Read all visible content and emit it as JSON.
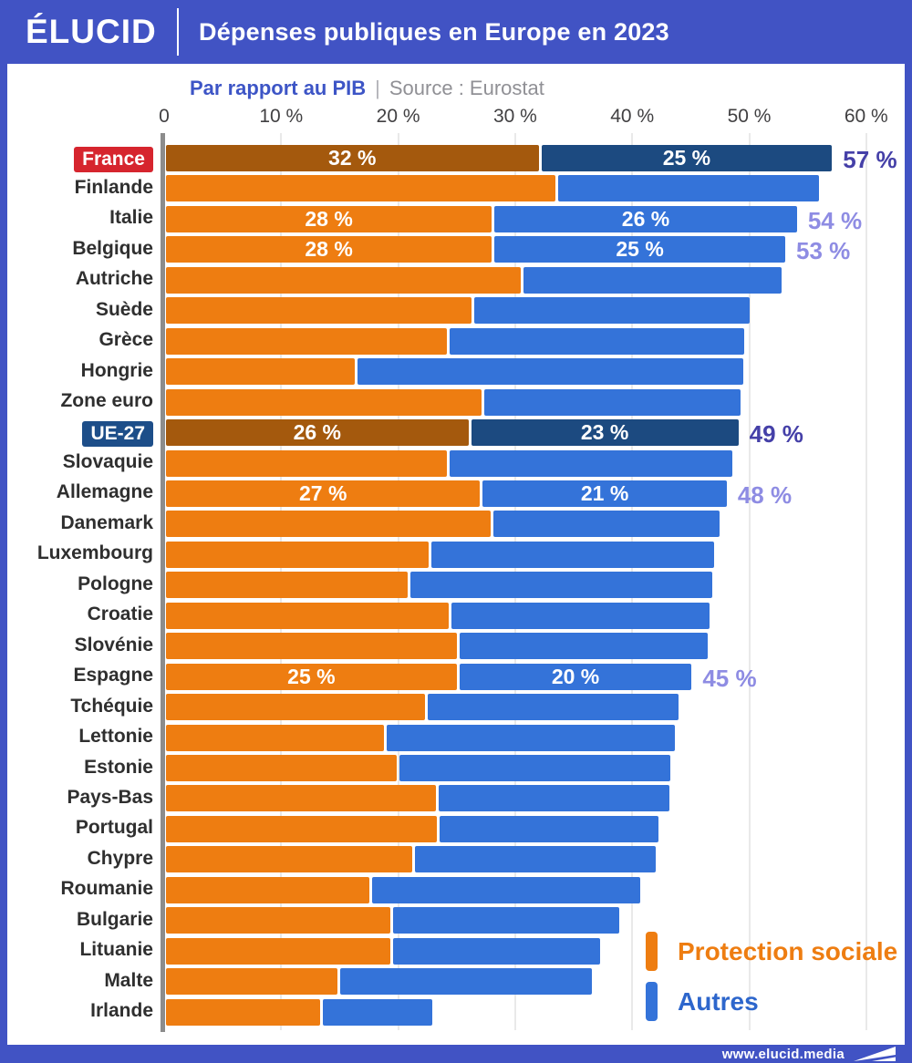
{
  "header": {
    "logo": "ÉLUCID",
    "title": "Dépenses publiques en Europe en 2023"
  },
  "subtitle": {
    "measure": "Par rapport au PIB",
    "separator": "|",
    "source": "Source : Eurostat"
  },
  "footer": {
    "url": "www.elucid.media"
  },
  "colors": {
    "frame_blue": "#4153c4",
    "orange": "#ee7d11",
    "orange_dark": "#a4590d",
    "blue": "#3473d9",
    "blue_dark": "#1c4a80",
    "red_pill": "#d6252e",
    "navy_pill": "#1d4e89",
    "total_dark": "#4540a8",
    "total_light": "#8e8ce3",
    "legend_orange_text": "#ee7d11",
    "legend_blue_text": "#2d66cc"
  },
  "chart_data": {
    "type": "bar",
    "orientation": "horizontal",
    "stacked": true,
    "title": "Dépenses publiques en Europe en 2023",
    "subtitle": "Par rapport au PIB",
    "source": "Source : Eurostat",
    "unit": "% du PIB",
    "xlim": [
      0,
      60
    ],
    "grid": true,
    "legend_position": "bottom-right",
    "series_names": [
      "Protection sociale",
      "Autres"
    ],
    "axis_ticks": [
      {
        "value": 0,
        "label": "0"
      },
      {
        "value": 10,
        "label": "10 %"
      },
      {
        "value": 20,
        "label": "20 %"
      },
      {
        "value": 30,
        "label": "30 %"
      },
      {
        "value": 40,
        "label": "40 %"
      },
      {
        "value": 50,
        "label": "50 %"
      },
      {
        "value": 60,
        "label": "60 %"
      }
    ],
    "legend": [
      {
        "label": "Protection sociale",
        "color": "#ee7d11"
      },
      {
        "label": "Autres",
        "color": "#3473d9"
      }
    ],
    "rows": [
      {
        "label": "France",
        "social": 32,
        "autres": 25,
        "total": 57,
        "social_label": "32 %",
        "autres_label": "25 %",
        "total_label": "57 %",
        "emphasis": true,
        "pill": "red"
      },
      {
        "label": "Finlande",
        "social": 33.4,
        "autres": 22.5,
        "total": 55.9
      },
      {
        "label": "Italie",
        "social": 28,
        "autres": 26,
        "total": 54,
        "social_label": "28 %",
        "autres_label": "26 %",
        "total_label": "54 %"
      },
      {
        "label": "Belgique",
        "social": 28,
        "autres": 25,
        "total": 53,
        "social_label": "28 %",
        "autres_label": "25 %",
        "total_label": "53 %"
      },
      {
        "label": "Autriche",
        "social": 30.5,
        "autres": 22.2,
        "total": 52.7
      },
      {
        "label": "Suède",
        "social": 26.3,
        "autres": 23.7,
        "total": 50.0
      },
      {
        "label": "Grèce",
        "social": 24.2,
        "autres": 25.3,
        "total": 49.5
      },
      {
        "label": "Hongrie",
        "social": 16.3,
        "autres": 33.1,
        "total": 49.4
      },
      {
        "label": "Zone euro",
        "social": 27.1,
        "autres": 22.1,
        "total": 49.2
      },
      {
        "label": "UE-27",
        "social": 26,
        "autres": 23,
        "total": 49,
        "social_label": "26 %",
        "autres_label": "23 %",
        "total_label": "49 %",
        "emphasis": true,
        "pill": "navy"
      },
      {
        "label": "Slovaquie",
        "social": 24.2,
        "autres": 24.3,
        "total": 48.5
      },
      {
        "label": "Allemagne",
        "social": 27,
        "autres": 21,
        "total": 48,
        "social_label": "27 %",
        "autres_label": "21 %",
        "total_label": "48 %"
      },
      {
        "label": "Danemark",
        "social": 27.9,
        "autres": 19.5,
        "total": 47.4
      },
      {
        "label": "Luxembourg",
        "social": 22.6,
        "autres": 24.3,
        "total": 46.9
      },
      {
        "label": "Pologne",
        "social": 20.8,
        "autres": 26.0,
        "total": 46.8
      },
      {
        "label": "Croatie",
        "social": 24.3,
        "autres": 22.2,
        "total": 46.5
      },
      {
        "label": "Slovénie",
        "social": 25.0,
        "autres": 21.4,
        "total": 46.4
      },
      {
        "label": "Espagne",
        "social": 25,
        "autres": 20,
        "total": 45,
        "social_label": "25 %",
        "autres_label": "20 %",
        "total_label": "45 %"
      },
      {
        "label": "Tchéquie",
        "social": 22.3,
        "autres": 21.6,
        "total": 43.9
      },
      {
        "label": "Lettonie",
        "social": 18.8,
        "autres": 24.8,
        "total": 43.6
      },
      {
        "label": "Estonie",
        "social": 19.9,
        "autres": 23.3,
        "total": 43.2
      },
      {
        "label": "Pays-Bas",
        "social": 23.2,
        "autres": 19.9,
        "total": 43.1
      },
      {
        "label": "Portugal",
        "social": 23.3,
        "autres": 18.9,
        "total": 42.2
      },
      {
        "label": "Chypre",
        "social": 21.2,
        "autres": 20.7,
        "total": 41.9
      },
      {
        "label": "Roumanie",
        "social": 17.5,
        "autres": 23.1,
        "total": 40.6
      },
      {
        "label": "Bulgarie",
        "social": 19.3,
        "autres": 19.5,
        "total": 38.8
      },
      {
        "label": "Lituanie",
        "social": 19.3,
        "autres": 17.9,
        "total": 37.2
      },
      {
        "label": "Malte",
        "social": 14.8,
        "autres": 21.7,
        "total": 36.5
      },
      {
        "label": "Irlande",
        "social": 13.3,
        "autres": 9.5,
        "total": 22.8
      }
    ]
  }
}
